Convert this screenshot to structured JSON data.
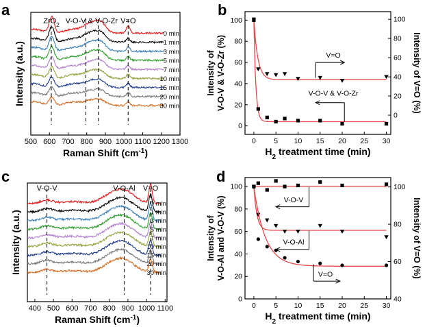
{
  "chart_data": [
    {
      "panel": "a",
      "type": "line",
      "title": "",
      "xlabel": "Raman Shift (cm",
      "xlabel_sup": "-1",
      "xlabel_close": ")",
      "ylabel": "Intensity (a.u.)",
      "xlim": [
        500,
        1300
      ],
      "xticks": [
        500,
        600,
        700,
        800,
        900,
        1000,
        1100,
        1200,
        1300
      ],
      "grid": false,
      "annotations": [
        {
          "text": "ZrO",
          "sub": "2",
          "at": 610
        },
        {
          "text": "V-O-V & V-O-Zr",
          "at": 826
        },
        {
          "text": "V=O",
          "at": 1022
        }
      ],
      "dashed_lines": [
        610,
        795,
        862,
        1022
      ],
      "series": [
        {
          "name": "0 min",
          "color": "#e41a1c"
        },
        {
          "name": "1 min",
          "color": "#000000"
        },
        {
          "name": "3 min",
          "color": "#377eb8"
        },
        {
          "name": "5 min",
          "color": "#2ca02c"
        },
        {
          "name": "7 min",
          "color": "#b27fce"
        },
        {
          "name": "10 min",
          "color": "#8fa33a"
        },
        {
          "name": "15 min",
          "color": "#1e3a8a"
        },
        {
          "name": "20 min",
          "color": "#777777"
        },
        {
          "name": "30 min",
          "color": "#d2691e"
        }
      ]
    },
    {
      "panel": "b",
      "type": "scatter",
      "title": "",
      "xlabel": "H",
      "xlabel_sub": "2",
      "xlabel_rest": " treatment time (min)",
      "ylabel_left": [
        "Intensity of",
        "V-O-V & V-O-Zr (%)"
      ],
      "ylabel_right": "Intensity of V=O (%)",
      "xlim": [
        -2,
        31
      ],
      "ylim_left": [
        -8,
        108
      ],
      "ylim_right": [
        -20,
        108
      ],
      "xticks": [
        0,
        5,
        10,
        15,
        20,
        25,
        30
      ],
      "yticks_left": [
        0,
        20,
        40,
        60,
        80,
        100
      ],
      "yticks_right": [
        0,
        20,
        40,
        60,
        80,
        100
      ],
      "grid": false,
      "fit_color": "#e8484a",
      "series": [
        {
          "name": "V=O",
          "axis": "right",
          "marker": "triangle",
          "x": [
            0,
            1,
            3,
            5,
            7,
            10,
            15,
            20,
            30
          ],
          "y": [
            100,
            48,
            43,
            42,
            43,
            38,
            39,
            36,
            40
          ],
          "fit": {
            "a": 37,
            "b": 63,
            "tau": 0.9
          },
          "label": "V=O",
          "arrow": "right"
        },
        {
          "name": "V-O-V & V-O-Zr",
          "axis": "left",
          "marker": "square",
          "x": [
            0,
            1,
            3,
            5,
            7,
            10,
            15,
            20,
            30
          ],
          "y": [
            100,
            16,
            8,
            4,
            7,
            5,
            5,
            2,
            2
          ],
          "fit": {
            "a": 4,
            "b": 96,
            "tau": 0.45
          },
          "label": "V-O-V & V-O-Zr",
          "arrow": "left"
        }
      ]
    },
    {
      "panel": "c",
      "type": "line",
      "title": "",
      "xlabel": "Raman Shift (cm",
      "xlabel_sup": "-1",
      "xlabel_close": ")",
      "ylabel": "Intensity (a.u.)",
      "xlim": [
        360,
        1110
      ],
      "xticks": [
        400,
        500,
        600,
        700,
        800,
        900,
        1000,
        1100
      ],
      "grid": false,
      "annotations": [
        {
          "text": "V-O-V",
          "at": 465
        },
        {
          "text": "V-O-Al",
          "at": 880
        },
        {
          "text": "V=O",
          "at": 1022
        }
      ],
      "dashed_lines": [
        465,
        880,
        1022
      ],
      "series": [
        {
          "name": "0 min",
          "color": "#e41a1c"
        },
        {
          "name": "1 min",
          "color": "#000000"
        },
        {
          "name": "3 min",
          "color": "#377eb8"
        },
        {
          "name": "5 min",
          "color": "#2ca02c"
        },
        {
          "name": "7 min",
          "color": "#b27fce"
        },
        {
          "name": "10 min",
          "color": "#8fa33a"
        },
        {
          "name": "15 min",
          "color": "#1e3a8a"
        },
        {
          "name": "20 min",
          "color": "#777777"
        },
        {
          "name": "30 min",
          "color": "#d2691e"
        }
      ]
    },
    {
      "panel": "d",
      "type": "scatter",
      "title": "",
      "xlabel": "H",
      "xlabel_sub": "2",
      "xlabel_rest": " treatment time (min)",
      "ylabel_left": [
        "Intensity of",
        "V-O-Al and V-O-V (%)"
      ],
      "ylabel_right": "Intensity of V=O (%)",
      "xlim": [
        -2,
        31
      ],
      "ylim_left": [
        0,
        108
      ],
      "ylim_right": [
        40,
        105
      ],
      "xticks": [
        0,
        5,
        10,
        15,
        20,
        25,
        30
      ],
      "yticks_left": [
        0,
        20,
        40,
        60,
        80,
        100
      ],
      "yticks_right": [
        40,
        60,
        80,
        100
      ],
      "grid": false,
      "fit_color": "#e8484a",
      "series": [
        {
          "name": "V-O-V",
          "axis": "left",
          "marker": "square",
          "x": [
            0,
            1,
            3,
            5,
            7,
            10,
            15,
            20,
            30
          ],
          "y": [
            100,
            103,
            97,
            105,
            100,
            101,
            104,
            101,
            102
          ],
          "fit": {
            "a": 100,
            "b": 0,
            "tau": 1
          },
          "label": "V-O-V",
          "arrow": "left"
        },
        {
          "name": "V-O-Al",
          "axis": "left",
          "marker": "triangle",
          "x": [
            0,
            1,
            3,
            5,
            7,
            10,
            15,
            20,
            30
          ],
          "y": [
            100,
            75,
            70,
            65,
            60,
            60,
            65,
            60,
            55
          ],
          "fit": {
            "a": 61,
            "b": 39,
            "tau": 0.7
          },
          "label": "V-O-Al",
          "arrow": "left"
        },
        {
          "name": "V=O",
          "axis": "right",
          "marker": "circle",
          "x": [
            0,
            1,
            3,
            5,
            7,
            10,
            15,
            20,
            30
          ],
          "y": [
            100,
            72,
            68,
            66,
            62,
            60,
            59,
            58,
            58
          ],
          "fit": {
            "a": 57.5,
            "b": 42.5,
            "tau": 2.6
          },
          "label": "V=O",
          "arrow": "right"
        }
      ]
    }
  ]
}
